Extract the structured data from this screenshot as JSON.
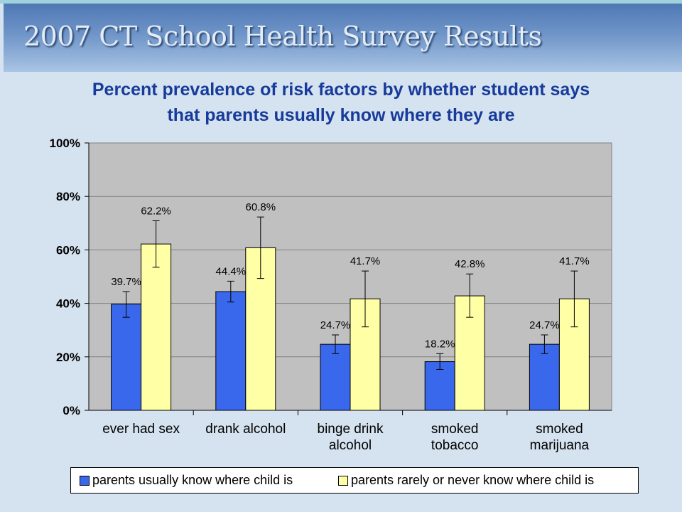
{
  "slide": {
    "title": "2007 CT School Health Survey Results"
  },
  "subtitle": {
    "line1": "Percent prevalence of risk factors by whether student says",
    "line2": "that parents usually know where they are"
  },
  "colors": {
    "series1": "#3a68ec",
    "series2": "#ffffa6",
    "plot_bg": "#c0c0c0",
    "gridline": "#808080"
  },
  "chart_data": {
    "type": "bar",
    "categories": [
      [
        "ever had sex"
      ],
      [
        "drank alcohol"
      ],
      [
        "binge drink",
        "alcohol"
      ],
      [
        "smoked",
        "tobacco"
      ],
      [
        "smoked",
        "marijuana"
      ]
    ],
    "series": [
      {
        "name": "parents usually know where child is",
        "values": [
          39.7,
          44.4,
          24.7,
          18.2,
          24.7
        ],
        "labels": [
          "39.7%",
          "44.4%",
          "24.7%",
          "18.2%",
          "24.7%"
        ],
        "error_low": [
          34.8,
          40.5,
          21.2,
          15.3,
          21.2
        ],
        "error_high": [
          44.4,
          48.3,
          28.2,
          21.2,
          28.2
        ]
      },
      {
        "name": "parents rarely or never know where child is",
        "values": [
          62.2,
          60.8,
          41.7,
          42.8,
          41.7
        ],
        "labels": [
          "62.2%",
          "60.8%",
          "41.7%",
          "42.8%",
          "41.7%"
        ],
        "error_low": [
          53.5,
          49.3,
          31.2,
          34.8,
          31.2
        ],
        "error_high": [
          70.9,
          72.3,
          52.1,
          51.0,
          52.1
        ]
      }
    ],
    "y_ticks": [
      0,
      20,
      40,
      60,
      80,
      100
    ],
    "y_tick_labels": [
      "0%",
      "20%",
      "40%",
      "60%",
      "80%",
      "100%"
    ],
    "ylim": [
      0,
      100
    ],
    "grid": true,
    "legend_position": "bottom"
  }
}
